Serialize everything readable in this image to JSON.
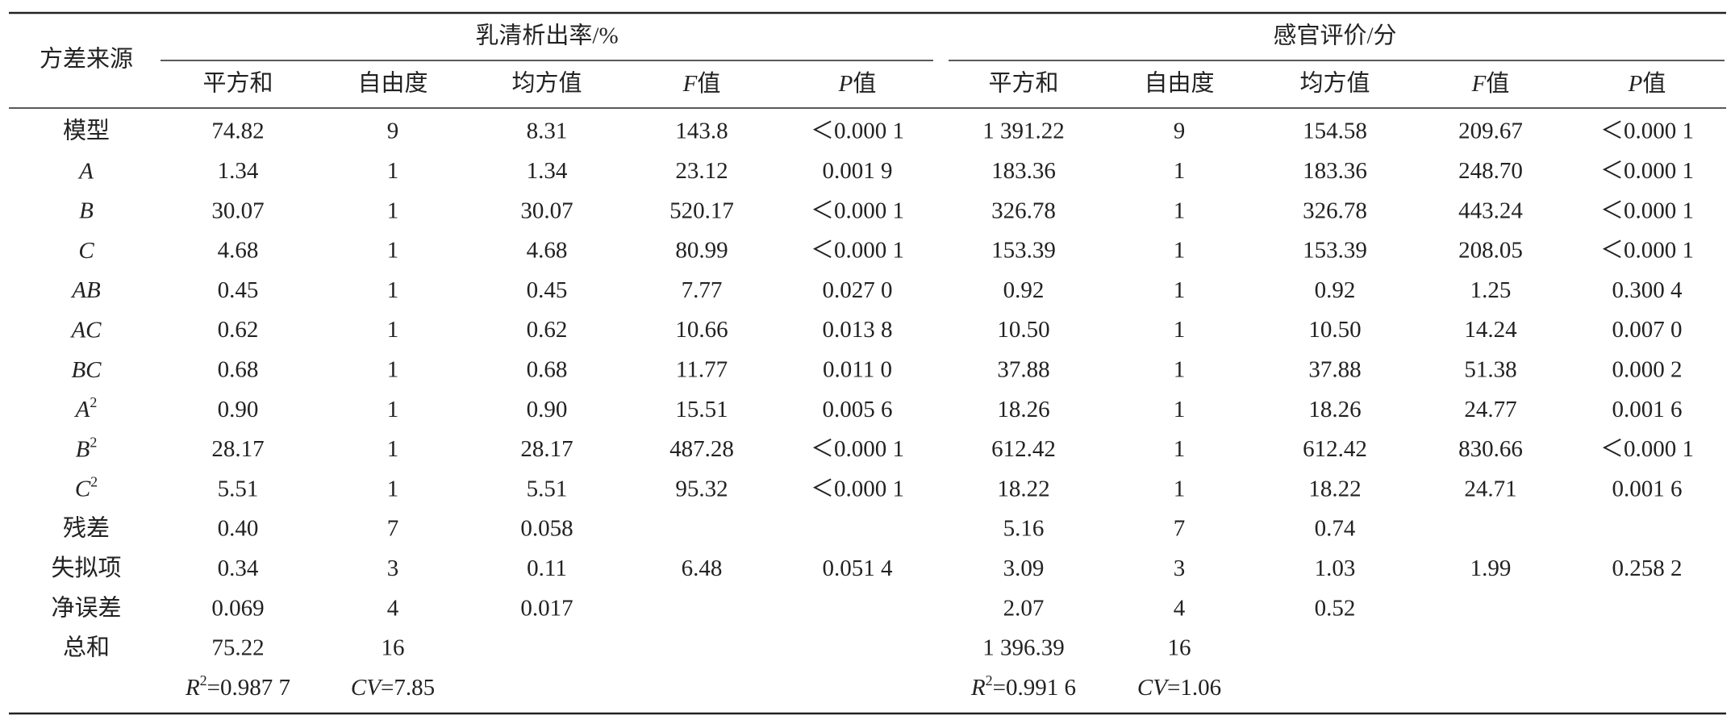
{
  "table": {
    "row_header": "方差来源",
    "groups": [
      {
        "title": "乳清析出率/%",
        "columns": [
          "平方和",
          "自由度",
          "均方值",
          [
            {
              "text": "F",
              "style": "italic"
            },
            {
              "text": "值"
            }
          ],
          [
            {
              "text": "P",
              "style": "italic"
            },
            {
              "text": "值"
            }
          ]
        ]
      },
      {
        "title": "感官评价/分",
        "columns": [
          "平方和",
          "自由度",
          "均方值",
          [
            {
              "text": "F",
              "style": "italic"
            },
            {
              "text": "值"
            }
          ],
          [
            {
              "text": "P",
              "style": "italic"
            },
            {
              "text": "值"
            }
          ]
        ]
      }
    ],
    "rows": [
      {
        "label": "模型",
        "cells": [
          "74.82",
          "9",
          "8.31",
          "143.8",
          "＜0.000 1",
          "1 391.22",
          "9",
          "154.58",
          "209.67",
          "＜0.000 1"
        ]
      },
      {
        "label": [
          {
            "text": "A",
            "style": "italic"
          }
        ],
        "cells": [
          "1.34",
          "1",
          "1.34",
          "23.12",
          "0.001 9",
          "183.36",
          "1",
          "183.36",
          "248.70",
          "＜0.000 1"
        ]
      },
      {
        "label": [
          {
            "text": "B",
            "style": "italic"
          }
        ],
        "cells": [
          "30.07",
          "1",
          "30.07",
          "520.17",
          "＜0.000 1",
          "326.78",
          "1",
          "326.78",
          "443.24",
          "＜0.000 1"
        ]
      },
      {
        "label": [
          {
            "text": "C",
            "style": "italic"
          }
        ],
        "cells": [
          "4.68",
          "1",
          "4.68",
          "80.99",
          "＜0.000 1",
          "153.39",
          "1",
          "153.39",
          "208.05",
          "＜0.000 1"
        ]
      },
      {
        "label": [
          {
            "text": "AB",
            "style": "italic"
          }
        ],
        "cells": [
          "0.45",
          "1",
          "0.45",
          "7.77",
          "0.027 0",
          "0.92",
          "1",
          "0.92",
          "1.25",
          "0.300 4"
        ]
      },
      {
        "label": [
          {
            "text": "AC",
            "style": "italic"
          }
        ],
        "cells": [
          "0.62",
          "1",
          "0.62",
          "10.66",
          "0.013 8",
          "10.50",
          "1",
          "10.50",
          "14.24",
          "0.007 0"
        ]
      },
      {
        "label": [
          {
            "text": "BC",
            "style": "italic"
          }
        ],
        "cells": [
          "0.68",
          "1",
          "0.68",
          "11.77",
          "0.011 0",
          "37.88",
          "1",
          "37.88",
          "51.38",
          "0.000 2"
        ]
      },
      {
        "label": [
          {
            "text": "A",
            "style": "italic"
          },
          {
            "text": "2",
            "style": "sup"
          }
        ],
        "cells": [
          "0.90",
          "1",
          "0.90",
          "15.51",
          "0.005 6",
          "18.26",
          "1",
          "18.26",
          "24.77",
          "0.001 6"
        ]
      },
      {
        "label": [
          {
            "text": "B",
            "style": "italic"
          },
          {
            "text": "2",
            "style": "sup"
          }
        ],
        "cells": [
          "28.17",
          "1",
          "28.17",
          "487.28",
          "＜0.000 1",
          "612.42",
          "1",
          "612.42",
          "830.66",
          "＜0.000 1"
        ]
      },
      {
        "label": [
          {
            "text": "C",
            "style": "italic"
          },
          {
            "text": "2",
            "style": "sup"
          }
        ],
        "cells": [
          "5.51",
          "1",
          "5.51",
          "95.32",
          "＜0.000 1",
          "18.22",
          "1",
          "18.22",
          "24.71",
          "0.001 6"
        ]
      },
      {
        "label": "残差",
        "cells": [
          "0.40",
          "7",
          "0.058",
          null,
          null,
          "5.16",
          "7",
          "0.74",
          null,
          null
        ]
      },
      {
        "label": "失拟项",
        "cells": [
          "0.34",
          "3",
          "0.11",
          "6.48",
          "0.051 4",
          "3.09",
          "3",
          "1.03",
          "1.99",
          "0.258 2"
        ]
      },
      {
        "label": "净误差",
        "cells": [
          "0.069",
          "4",
          "0.017",
          null,
          null,
          "2.07",
          "4",
          "0.52",
          null,
          null
        ]
      },
      {
        "label": "总和",
        "cells": [
          "75.22",
          "16",
          null,
          null,
          null,
          "1 396.39",
          "16",
          null,
          null,
          null
        ]
      },
      {
        "label": null,
        "cells": [
          [
            {
              "text": "R",
              "style": "italic"
            },
            {
              "text": "2",
              "style": "sup"
            },
            {
              "text": "=0.987 7"
            }
          ],
          [
            {
              "text": "CV",
              "style": "italic"
            },
            {
              "text": "=7.85"
            }
          ],
          null,
          null,
          null,
          [
            {
              "text": "R",
              "style": "italic"
            },
            {
              "text": "2",
              "style": "sup"
            },
            {
              "text": "=0.991 6"
            }
          ],
          [
            {
              "text": "CV",
              "style": "italic"
            },
            {
              "text": "=1.06"
            }
          ],
          null,
          null,
          null
        ]
      }
    ]
  }
}
